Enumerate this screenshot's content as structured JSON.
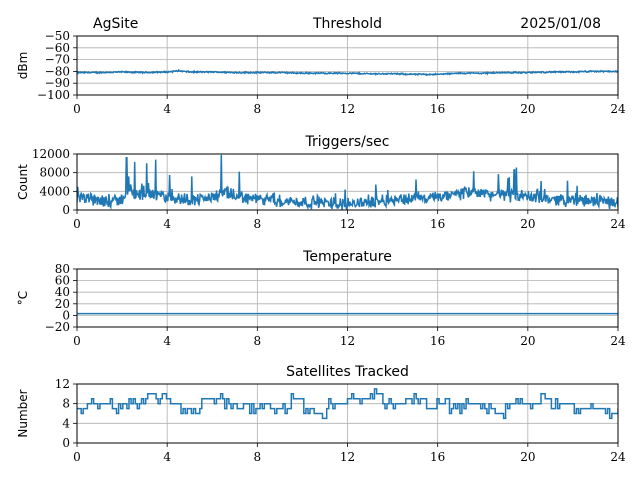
{
  "header": {
    "site": "AgSite",
    "date": "2025/01/08"
  },
  "colors": {
    "series": "#1f77b4",
    "grid": "#b0b0b0"
  },
  "chart_data": [
    {
      "type": "line",
      "title": "Threshold",
      "xlabel": "",
      "ylabel": "dBm",
      "xlim": [
        0,
        24
      ],
      "ylim": [
        -100,
        -50
      ],
      "xticks": [
        0,
        4,
        8,
        12,
        16,
        20,
        24
      ],
      "yticks": [
        -100,
        -90,
        -80,
        -70,
        -60,
        -50
      ],
      "ytick_labels": [
        "−100",
        "−90",
        "−80",
        "−70",
        "−60",
        "−50"
      ],
      "grid": true,
      "series": [
        {
          "x": [
            0,
            1,
            2,
            3,
            4,
            4.5,
            5,
            6,
            7,
            8,
            9,
            10,
            11,
            12,
            13,
            14,
            15,
            16,
            17,
            18,
            19,
            20,
            21,
            22,
            23,
            24
          ],
          "y": [
            -81,
            -81,
            -80.5,
            -81,
            -80.5,
            -79.5,
            -80.5,
            -80.5,
            -81,
            -81,
            -81,
            -81.5,
            -81.5,
            -81.5,
            -82,
            -82,
            -82.5,
            -82.5,
            -81.5,
            -81.5,
            -81,
            -81,
            -80.5,
            -80.5,
            -80,
            -80
          ],
          "noise": 0.7
        }
      ]
    },
    {
      "type": "line",
      "title": "Triggers/sec",
      "xlabel": "",
      "ylabel": "Count",
      "xlim": [
        0,
        24
      ],
      "ylim": [
        0,
        12000
      ],
      "xticks": [
        0,
        4,
        8,
        12,
        16,
        20,
        24
      ],
      "yticks": [
        0,
        4000,
        8000,
        12000
      ],
      "ytick_labels": [
        "0",
        "4000",
        "8000",
        "12000"
      ],
      "grid": true,
      "series": [
        {
          "x": [
            0,
            0.5,
            1,
            1.5,
            2,
            2.3,
            2.6,
            3,
            3.5,
            4,
            4.5,
            5,
            5.5,
            6,
            6.4,
            7,
            7.5,
            8,
            8.5,
            9,
            10,
            11,
            12,
            12.5,
            13,
            14,
            15,
            16,
            16.5,
            17,
            17.5,
            18,
            18.5,
            19,
            19.5,
            20,
            20.5,
            21,
            22,
            23,
            24
          ],
          "y": [
            2500,
            2400,
            2000,
            1800,
            2200,
            4500,
            3200,
            3500,
            3000,
            2800,
            2500,
            2200,
            2400,
            2600,
            3600,
            3000,
            2700,
            2300,
            2100,
            1900,
            1700,
            1500,
            1400,
            1500,
            1800,
            2200,
            2500,
            2600,
            3000,
            3500,
            3800,
            3600,
            3300,
            3200,
            3000,
            2800,
            2600,
            2400,
            2100,
            1900,
            1700
          ],
          "noise": 1600,
          "spikes": [
            [
              2.2,
              11200
            ],
            [
              2.55,
              10300
            ],
            [
              3.1,
              10000
            ],
            [
              3.5,
              10800
            ],
            [
              4.1,
              7500
            ],
            [
              6.4,
              11800
            ],
            [
              7.2,
              8200
            ],
            [
              5.1,
              7200
            ],
            [
              17.6,
              8300
            ],
            [
              18.7,
              7700
            ],
            [
              19.4,
              8600
            ],
            [
              19.5,
              9100
            ]
          ]
        }
      ]
    },
    {
      "type": "line",
      "title": "Temperature",
      "xlabel": "",
      "ylabel": "°C",
      "xlim": [
        0,
        24
      ],
      "ylim": [
        -20,
        80
      ],
      "xticks": [
        0,
        4,
        8,
        12,
        16,
        20,
        24
      ],
      "yticks": [
        -20,
        0,
        20,
        40,
        60,
        80
      ],
      "ytick_labels": [
        "−20",
        "0",
        "20",
        "40",
        "60",
        "80"
      ],
      "grid": true,
      "series": [
        {
          "x": [
            0,
            24
          ],
          "y": [
            3,
            3
          ],
          "noise": 0
        }
      ]
    },
    {
      "type": "line",
      "title": "Satellites Tracked",
      "xlabel": "",
      "ylabel": "Number",
      "xlim": [
        0,
        24
      ],
      "ylim": [
        0,
        12
      ],
      "xticks": [
        0,
        4,
        8,
        12,
        16,
        20,
        24
      ],
      "yticks": [
        0,
        4,
        8,
        12
      ],
      "ytick_labels": [
        "0",
        "4",
        "8",
        "12"
      ],
      "grid": true,
      "series": [
        {
          "x": [
            0,
            0.3,
            0.8,
            1.5,
            2,
            2.5,
            3,
            3.5,
            3.8,
            4,
            4.5,
            5,
            5.5,
            6,
            6.5,
            7,
            7.5,
            8,
            8.5,
            9,
            9.5,
            10,
            10.5,
            10.8,
            11,
            11.5,
            12,
            12.5,
            13,
            13.5,
            14,
            14.5,
            15,
            15.5,
            16,
            16.5,
            17,
            17.5,
            18,
            18.5,
            19,
            19.5,
            20,
            20.5,
            21,
            21.5,
            22,
            22.5,
            23,
            23.5,
            24
          ],
          "y": [
            7,
            8,
            8,
            7,
            8,
            8,
            9,
            9,
            10,
            8,
            7,
            7,
            9,
            9,
            8,
            7,
            7,
            8,
            7,
            7,
            9,
            7,
            6,
            5,
            8,
            8,
            9,
            9,
            10,
            8,
            8,
            9,
            9,
            8,
            8,
            7,
            8,
            8,
            7,
            6,
            8,
            8,
            8,
            9,
            8,
            8,
            7,
            7,
            7,
            6,
            7
          ],
          "step": true,
          "jitter": 1
        }
      ]
    }
  ]
}
